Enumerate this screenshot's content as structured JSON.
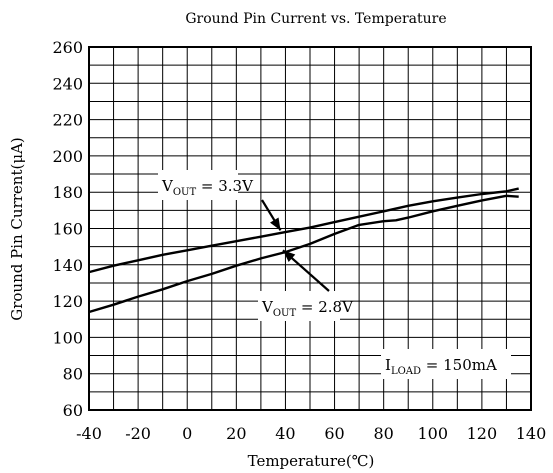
{
  "chart_data": {
    "type": "line",
    "title": "Ground Pin Current vs. Temperature",
    "xlabel": "Temperature(℃)",
    "ylabel": "Ground Pin Current(μA)",
    "xlim": [
      -40,
      140
    ],
    "ylim": [
      60,
      260
    ],
    "x_ticks": [
      -40,
      -20,
      0,
      20,
      40,
      60,
      80,
      100,
      120,
      140
    ],
    "y_ticks": [
      60,
      80,
      100,
      120,
      140,
      160,
      180,
      200,
      220,
      240,
      260
    ],
    "x_tick_labels": [
      "-40",
      "-20",
      "0",
      "20",
      "40",
      "60",
      "80",
      "100",
      "120",
      "140"
    ],
    "y_tick_labels": [
      "60",
      "80",
      "100",
      "120",
      "140",
      "160",
      "180",
      "200",
      "220",
      "240",
      "260"
    ],
    "grid": true,
    "series": [
      {
        "name": "V_OUT = 3.3V",
        "color": "#000000",
        "x": [
          -40,
          -30,
          -20,
          -10,
          0,
          10,
          20,
          30,
          40,
          50,
          60,
          70,
          80,
          90,
          100,
          110,
          120,
          130,
          135
        ],
        "y": [
          136,
          139.5,
          142.5,
          145.5,
          148,
          150.5,
          153,
          155.5,
          158,
          160.5,
          163.5,
          166.5,
          169.5,
          172.5,
          175,
          177,
          179,
          180.5,
          182
        ]
      },
      {
        "name": "V_OUT = 2.8V",
        "color": "#000000",
        "x": [
          -40,
          -30,
          -20,
          -10,
          0,
          10,
          20,
          30,
          40,
          50,
          60,
          70,
          80,
          85,
          90,
          100,
          110,
          120,
          130,
          135
        ],
        "y": [
          114,
          118,
          122.5,
          126.5,
          131,
          135,
          139.5,
          143.5,
          147,
          151.5,
          157,
          162,
          164,
          164.5,
          166,
          169.5,
          172.5,
          175.5,
          178,
          177.5
        ]
      }
    ],
    "annotations": [
      {
        "main": "V",
        "sub": "OUT",
        "rest": " = 3.3V",
        "target_x": 38,
        "target_y": 159
      },
      {
        "main": "V",
        "sub": "OUT",
        "rest": " = 2.8V",
        "target_x": 39,
        "target_y": 148
      },
      {
        "main": "I",
        "sub": "LOAD",
        "rest": " = 150mA"
      }
    ]
  }
}
